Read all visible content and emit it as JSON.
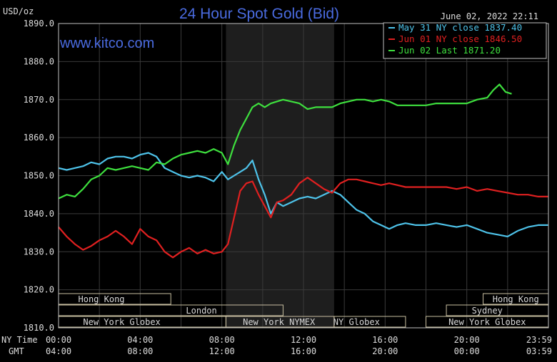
{
  "chart_data": {
    "type": "line",
    "title": "24 Hour Spot Gold (Bid)",
    "watermark": "www.kitco.com",
    "unit_label": "USD/oz",
    "timestamp": "June 02, 2022 22:11",
    "ylim": [
      1810,
      1890
    ],
    "yticks": [
      "1890.0",
      "1880.0",
      "1870.0",
      "1860.0",
      "1850.0",
      "1840.0",
      "1830.0",
      "1820.0",
      "1810.0"
    ],
    "x_hours": [
      0,
      24
    ],
    "xticks_ny_label": "NY Time",
    "xticks_gmt_label": "GMT",
    "xticks_ny": [
      "00:00",
      "04:00",
      "08:00",
      "12:00",
      "16:00",
      "20:00",
      "23:59"
    ],
    "xticks_gmt": [
      "04:00",
      "08:00",
      "12:00",
      "16:00",
      "20:00",
      "00:00",
      "03:59"
    ],
    "grid": true,
    "legend_position": "top-right",
    "colors": {
      "background": "#000000",
      "plot_background": "#000000",
      "highlight_band": "#1e1e1e",
      "grid": "#3a3a3a",
      "title": "#4a6be0",
      "watermark": "#4a6be0"
    },
    "highlight_band_hours": [
      8.2,
      13.5
    ],
    "sessions": [
      {
        "name": "Hong Kong",
        "row": 1,
        "start": 0,
        "end": 5.5,
        "label_at": 2.1
      },
      {
        "name": "",
        "row": 1,
        "start": 20.8,
        "end": 24,
        "label_at": 22.4
      },
      {
        "name": "Hong Kong",
        "row": 1,
        "start": 20.8,
        "end": 24,
        "label_at": 22.4
      },
      {
        "name": "London",
        "row": 2,
        "start": 0,
        "end": 11,
        "label_at": 7.0
      },
      {
        "name": "Sydney",
        "row": 2,
        "start": 19.0,
        "end": 24,
        "label_at": 21.0
      },
      {
        "name": "New York Globex",
        "row": 3,
        "start": 0,
        "end": 8.2,
        "label_at": 3.1
      },
      {
        "name": "New York NYMEX",
        "row": 3,
        "start": 8.2,
        "end": 13.5,
        "label_at": 10.8
      },
      {
        "name": "NY Globex",
        "row": 3,
        "start": 13.5,
        "end": 17.0,
        "label_at": 14.6
      },
      {
        "name": "New York Globex",
        "row": 3,
        "start": 18.0,
        "end": 24,
        "label_at": 21.0
      }
    ],
    "series": [
      {
        "name": "May 31 NY close 1837.40",
        "color": "#4ec3ea",
        "x": [
          0,
          0.4,
          0.8,
          1.2,
          1.6,
          2.0,
          2.4,
          2.8,
          3.2,
          3.6,
          4.0,
          4.4,
          4.8,
          5.2,
          5.6,
          6.0,
          6.4,
          6.8,
          7.2,
          7.6,
          8.0,
          8.3,
          8.6,
          8.9,
          9.2,
          9.5,
          9.8,
          10.1,
          10.4,
          10.7,
          11.0,
          11.4,
          11.8,
          12.2,
          12.6,
          13.0,
          13.4,
          13.8,
          14.2,
          14.6,
          15.0,
          15.4,
          15.8,
          16.2,
          16.6,
          17.0,
          17.5,
          18.0,
          18.5,
          19.0,
          19.5,
          20.0,
          20.5,
          21.0,
          21.5,
          22.0,
          22.5,
          23.0,
          23.5,
          23.98
        ],
        "values": [
          1852,
          1851.5,
          1852,
          1852.5,
          1853.5,
          1853,
          1854.5,
          1855,
          1855,
          1854.5,
          1855.5,
          1856,
          1855,
          1852,
          1851,
          1850,
          1849.5,
          1850,
          1849.5,
          1848.5,
          1851,
          1849,
          1850,
          1851,
          1852,
          1854,
          1849,
          1845,
          1840,
          1843,
          1842,
          1843,
          1844,
          1844.5,
          1844,
          1845,
          1846,
          1845,
          1843,
          1841,
          1840,
          1838,
          1837,
          1836,
          1837,
          1837.5,
          1837,
          1837,
          1837.5,
          1837,
          1836.5,
          1837,
          1836,
          1835,
          1834.5,
          1834,
          1835.5,
          1836.5,
          1837,
          1837
        ]
      },
      {
        "name": "Jun 01 NY close 1846.50",
        "color": "#e02020",
        "x": [
          0,
          0.4,
          0.8,
          1.2,
          1.6,
          2.0,
          2.4,
          2.8,
          3.2,
          3.6,
          4.0,
          4.4,
          4.8,
          5.2,
          5.6,
          6.0,
          6.4,
          6.8,
          7.2,
          7.6,
          8.0,
          8.3,
          8.6,
          8.9,
          9.2,
          9.5,
          9.8,
          10.1,
          10.4,
          10.7,
          11.0,
          11.4,
          11.8,
          12.2,
          12.6,
          13.0,
          13.4,
          13.8,
          14.2,
          14.6,
          15.0,
          15.4,
          15.8,
          16.2,
          16.6,
          17.0,
          17.5,
          18.0,
          18.5,
          19.0,
          19.5,
          20.0,
          20.5,
          21.0,
          21.5,
          22.0,
          22.5,
          23.0,
          23.5,
          23.98
        ],
        "values": [
          1836.5,
          1834,
          1832,
          1830.5,
          1831.5,
          1833,
          1834,
          1835.5,
          1834,
          1832,
          1836,
          1834,
          1833,
          1830,
          1828.5,
          1830,
          1831,
          1829.5,
          1830.5,
          1829.5,
          1830,
          1832,
          1839,
          1846,
          1848,
          1848.5,
          1845,
          1842,
          1839,
          1843,
          1843.5,
          1845,
          1848,
          1849.5,
          1848,
          1846.5,
          1845.5,
          1848,
          1849,
          1849,
          1848.5,
          1848,
          1847.5,
          1848,
          1847.5,
          1847,
          1847,
          1847,
          1847,
          1847,
          1846.5,
          1847,
          1846,
          1846.5,
          1846,
          1845.5,
          1845,
          1845,
          1844.5,
          1844.5
        ]
      },
      {
        "name": "Jun 02 Last 1871.20",
        "color": "#3ee03e",
        "x": [
          0,
          0.4,
          0.8,
          1.2,
          1.6,
          2.0,
          2.4,
          2.8,
          3.2,
          3.6,
          4.0,
          4.4,
          4.8,
          5.2,
          5.6,
          6.0,
          6.4,
          6.8,
          7.2,
          7.6,
          8.0,
          8.3,
          8.6,
          8.9,
          9.2,
          9.5,
          9.8,
          10.1,
          10.4,
          10.7,
          11.0,
          11.4,
          11.8,
          12.2,
          12.6,
          13.0,
          13.4,
          13.8,
          14.2,
          14.6,
          15.0,
          15.4,
          15.8,
          16.2,
          16.6,
          17.0,
          17.5,
          18.0,
          18.5,
          19.0,
          19.5,
          20.0,
          20.5,
          21.0,
          21.3,
          21.6,
          21.9,
          22.2
        ],
        "values": [
          1844,
          1845,
          1844.5,
          1846.5,
          1849,
          1850,
          1852,
          1851.5,
          1852,
          1852.5,
          1852,
          1851.5,
          1853.5,
          1853,
          1854.5,
          1855.5,
          1856,
          1856.5,
          1856,
          1857,
          1856,
          1853,
          1858,
          1862,
          1865,
          1868,
          1869,
          1868,
          1869,
          1869.5,
          1870,
          1869.5,
          1869,
          1867.5,
          1868,
          1868,
          1868,
          1869,
          1869.5,
          1870,
          1870,
          1869.5,
          1870,
          1869.5,
          1868.5,
          1868.5,
          1868.5,
          1868.5,
          1869,
          1869,
          1869,
          1869,
          1870,
          1870.5,
          1872.5,
          1874,
          1872,
          1871.5
        ]
      }
    ]
  }
}
